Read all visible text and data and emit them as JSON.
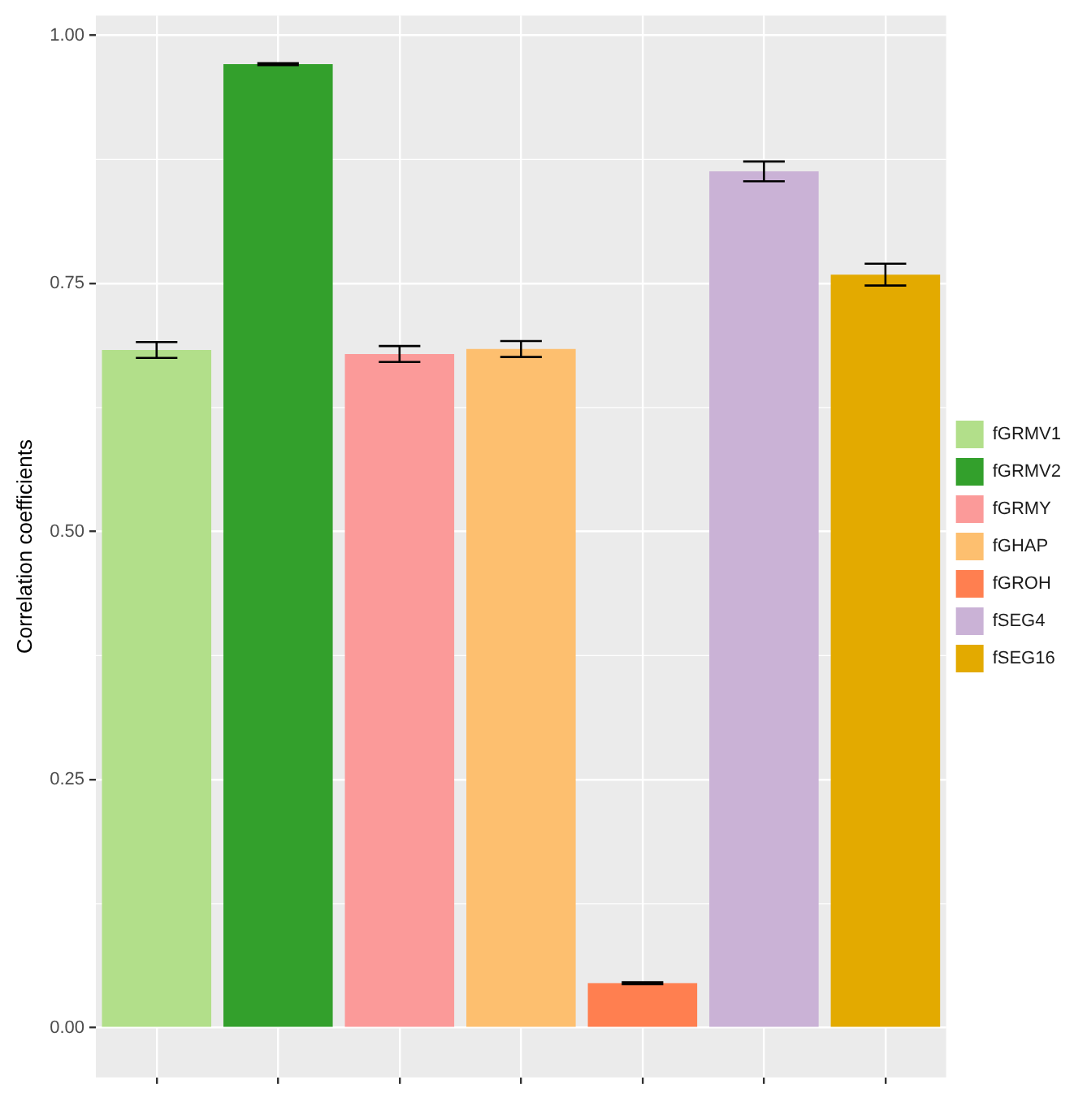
{
  "chart_data": {
    "type": "bar",
    "ylabel": "Correlation coefficients",
    "categories": [
      null,
      null,
      null,
      null,
      null,
      null,
      null
    ],
    "series": [
      {
        "name": "fGRMV1",
        "color": "#b2df8a",
        "values": [
          0.683,
          null,
          null,
          null,
          null,
          null,
          null
        ],
        "errors": [
          0.008,
          null,
          null,
          null,
          null,
          null,
          null
        ]
      },
      {
        "name": "fGRMV2",
        "color": "#33a02c",
        "values": [
          null,
          0.971,
          null,
          null,
          null,
          null,
          null
        ],
        "errors": [
          null,
          0.001,
          null,
          null,
          null,
          null,
          null
        ]
      },
      {
        "name": "fGRMY",
        "color": "#fb9a99",
        "values": [
          null,
          null,
          0.679,
          null,
          null,
          null,
          null
        ],
        "errors": [
          null,
          null,
          0.008,
          null,
          null,
          null,
          null
        ]
      },
      {
        "name": "fGHAP",
        "color": "#fdbf6f",
        "values": [
          null,
          null,
          null,
          0.684,
          null,
          null,
          null
        ],
        "errors": [
          null,
          null,
          null,
          0.008,
          null,
          null,
          null
        ]
      },
      {
        "name": "fGROH",
        "color": "#ff7f50",
        "values": [
          null,
          null,
          null,
          null,
          0.045,
          null,
          null
        ],
        "errors": [
          null,
          null,
          null,
          null,
          0.001,
          null,
          null
        ]
      },
      {
        "name": "fSEG4",
        "color": "#cab2d6",
        "values": [
          null,
          null,
          null,
          null,
          null,
          0.863,
          null
        ],
        "errors": [
          null,
          null,
          null,
          null,
          null,
          0.01,
          null
        ]
      },
      {
        "name": "fSEG16",
        "color": "#e3aa00",
        "values": [
          null,
          null,
          null,
          null,
          null,
          null,
          0.759
        ],
        "errors": [
          null,
          null,
          null,
          null,
          null,
          null,
          0.011
        ]
      }
    ],
    "ylim": [
      -0.05,
      1.02
    ],
    "yticks": [
      {
        "value": 0,
        "label": "0.00"
      },
      {
        "value": 0.25,
        "label": "0.25"
      },
      {
        "value": 0.5,
        "label": "0.50"
      },
      {
        "value": 0.75,
        "label": "0.75"
      },
      {
        "value": 1,
        "label": "1.00"
      }
    ],
    "grid": true,
    "legend": "right",
    "tick_labels": "y"
  }
}
